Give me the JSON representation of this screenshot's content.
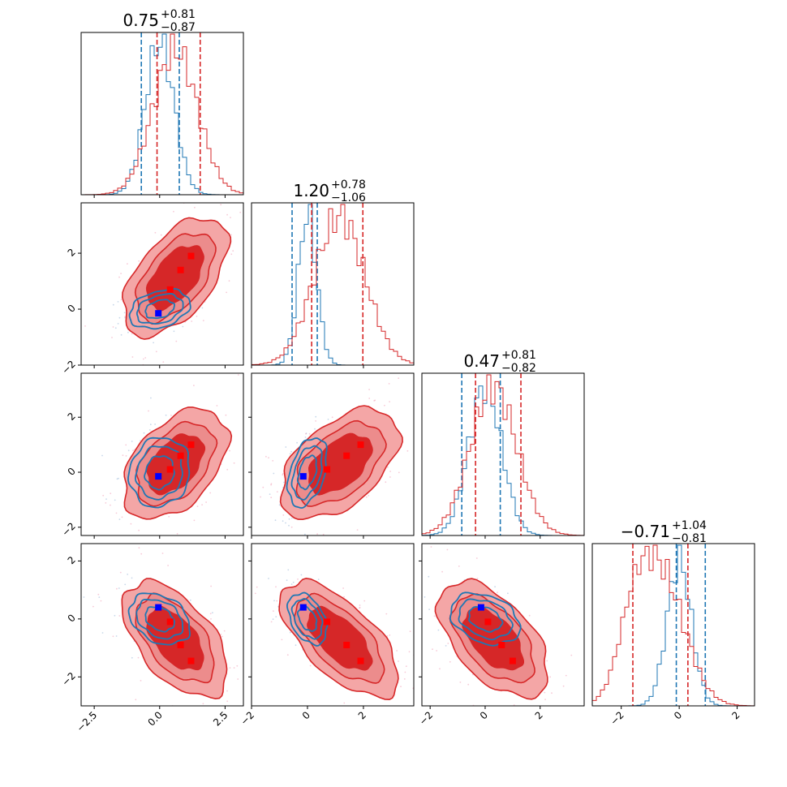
{
  "chart_data": {
    "type": "corner",
    "titles": [
      {
        "value": "0.75",
        "plus": "+0.81",
        "minus": "−0.87"
      },
      {
        "value": "1.20",
        "plus": "+0.78",
        "minus": "−1.06"
      },
      {
        "value": "0.47",
        "plus": "+0.81",
        "minus": "−0.82"
      },
      {
        "value": "−0.71",
        "plus": "+1.04",
        "minus": "−0.81"
      }
    ],
    "ranges": [
      [
        -3.0,
        3.2
      ],
      [
        -2.0,
        3.8
      ],
      [
        -2.3,
        3.6
      ],
      [
        -3.0,
        2.6
      ]
    ],
    "ticks": [
      {
        "values": [
          -2.5,
          0.0,
          2.5
        ],
        "labels": [
          "−2.5",
          "0.0",
          "2.5"
        ]
      },
      {
        "values": [
          -2,
          0,
          2
        ],
        "labels": [
          "−2",
          "0",
          "2"
        ]
      },
      {
        "values": [
          -2,
          0,
          2
        ],
        "labels": [
          "−2",
          "0",
          "2"
        ]
      },
      {
        "values": [
          -2,
          0,
          2
        ],
        "labels": [
          "−2",
          "0",
          "2"
        ]
      }
    ],
    "colors": {
      "blue": "#1f77b4",
      "red": "#d62728",
      "red_fill": "#f0a0a0",
      "blue_marker": "#0000ff",
      "red_marker": "#ff0000"
    },
    "series": [
      {
        "color": "#1f77b4",
        "mean": [
          0.0,
          0.0,
          0.0,
          0.0
        ],
        "std": [
          0.55,
          0.33,
          0.6,
          0.42
        ],
        "corr": {
          "1,0": 0.3,
          "2,0": 0.1,
          "2,1": 0.4,
          "3,0": -0.3,
          "3,1": -0.4,
          "3,2": -0.3
        },
        "quantiles": [
          [
            -0.7,
            0.75
          ],
          [
            -0.55,
            0.35
          ],
          [
            -0.85,
            0.55
          ],
          [
            -0.1,
            0.9
          ]
        ],
        "filled": false
      },
      {
        "color": "#d62728",
        "mean": [
          0.6,
          1.15,
          0.3,
          -0.7
        ],
        "std": [
          0.85,
          0.9,
          0.85,
          0.85
        ],
        "corr": {
          "1,0": 0.55,
          "2,0": 0.45,
          "2,1": 0.5,
          "3,0": -0.55,
          "3,1": -0.65,
          "3,2": -0.55
        },
        "quantiles": [
          [
            -0.1,
            1.55
          ],
          [
            0.15,
            1.98
          ],
          [
            -0.35,
            1.3
          ],
          [
            -1.6,
            0.3
          ]
        ],
        "filled": true
      }
    ],
    "markers_blue": [
      -0.05,
      -0.15,
      -0.15,
      0.4
    ],
    "markers_red": [
      [
        0.4,
        0.7,
        0.1,
        -0.1
      ],
      [
        0.8,
        1.4,
        0.6,
        -0.9
      ],
      [
        1.2,
        1.9,
        1.0,
        -1.45
      ]
    ]
  }
}
